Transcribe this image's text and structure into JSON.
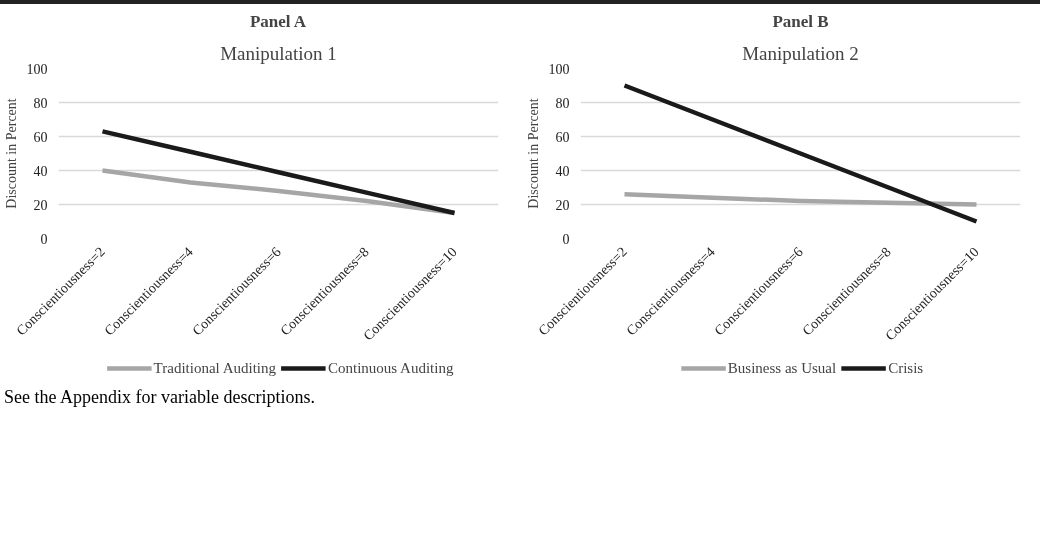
{
  "chart_data": [
    {
      "type": "line",
      "title": "Panel A",
      "subtitle": "Manipulation 1",
      "ylabel": "Discount in Percent",
      "categories": [
        "Conscientiousness=2",
        "Conscientiousness=4",
        "Conscientiousness=6",
        "Conscientiousness=8",
        "Conscientiousness=10"
      ],
      "series": [
        {
          "name": "Traditional Auditing",
          "color": "#a6a6a6",
          "values": [
            40,
            33,
            28,
            22,
            15
          ]
        },
        {
          "name": "Continuous Auditing",
          "color": "#1a1a1a",
          "values": [
            63,
            51,
            39,
            27,
            15
          ]
        }
      ],
      "ylim": [
        0,
        100
      ],
      "yticks": [
        0,
        20,
        40,
        60,
        80,
        100
      ],
      "grid": "y",
      "legend": "bottom",
      "marker": "none",
      "line_style": "solid",
      "annotations": [
        "See the Appendix for variable descriptions."
      ]
    },
    {
      "type": "line",
      "title": "Panel B",
      "subtitle": "Manipulation 2",
      "ylabel": "Discount in Percent",
      "categories": [
        "Conscientiousness=2",
        "Conscientiousness=4",
        "Conscientiousness=6",
        "Conscientiousness=8",
        "Conscientiousness=10"
      ],
      "series": [
        {
          "name": "Business as Usual",
          "color": "#a6a6a6",
          "values": [
            26,
            24,
            22,
            21,
            20
          ]
        },
        {
          "name": "Crisis",
          "color": "#1a1a1a",
          "values": [
            90,
            70,
            50,
            30,
            10
          ]
        }
      ],
      "ylim": [
        0,
        100
      ],
      "yticks": [
        0,
        20,
        40,
        60,
        80,
        100
      ],
      "grid": "y",
      "legend": "bottom",
      "marker": "none",
      "line_style": "solid"
    }
  ]
}
